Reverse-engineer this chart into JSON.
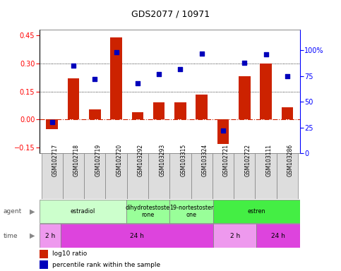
{
  "title": "GDS2077 / 10971",
  "samples": [
    "GSM102717",
    "GSM102718",
    "GSM102719",
    "GSM102720",
    "GSM103292",
    "GSM103293",
    "GSM103315",
    "GSM103324",
    "GSM102721",
    "GSM102722",
    "GSM103111",
    "GSM103286"
  ],
  "log10_ratio": [
    -0.05,
    0.22,
    0.055,
    0.44,
    0.04,
    0.09,
    0.09,
    0.135,
    -0.13,
    0.23,
    0.3,
    0.065
  ],
  "percentile_rank": [
    30,
    85,
    72,
    98,
    68,
    77,
    82,
    97,
    22,
    88,
    96,
    75
  ],
  "ylim_left": [
    -0.18,
    0.48
  ],
  "ylim_right": [
    0,
    120
  ],
  "yticks_left": [
    -0.15,
    0.0,
    0.15,
    0.3,
    0.45
  ],
  "yticks_right": [
    0,
    25,
    50,
    75,
    100
  ],
  "hlines_dotted": [
    0.15,
    0.3
  ],
  "bar_color": "#cc2200",
  "scatter_color": "#0000bb",
  "zero_line_color": "#cc2200",
  "agent_groups": [
    {
      "label": "estradiol",
      "start": 0,
      "end": 4,
      "color": "#ccffcc"
    },
    {
      "label": "dihydrotestoste\nrone",
      "start": 4,
      "end": 6,
      "color": "#99ff99"
    },
    {
      "label": "19-nortestoster\none",
      "start": 6,
      "end": 8,
      "color": "#99ff99"
    },
    {
      "label": "estren",
      "start": 8,
      "end": 12,
      "color": "#44ee44"
    }
  ],
  "time_groups": [
    {
      "label": "2 h",
      "start": 0,
      "end": 1,
      "color": "#ee99ee"
    },
    {
      "label": "24 h",
      "start": 1,
      "end": 8,
      "color": "#dd44dd"
    },
    {
      "label": "2 h",
      "start": 8,
      "end": 10,
      "color": "#ee99ee"
    },
    {
      "label": "24 h",
      "start": 10,
      "end": 12,
      "color": "#dd44dd"
    }
  ],
  "legend_red": "log10 ratio",
  "legend_blue": "percentile rank within the sample",
  "bar_width": 0.55
}
